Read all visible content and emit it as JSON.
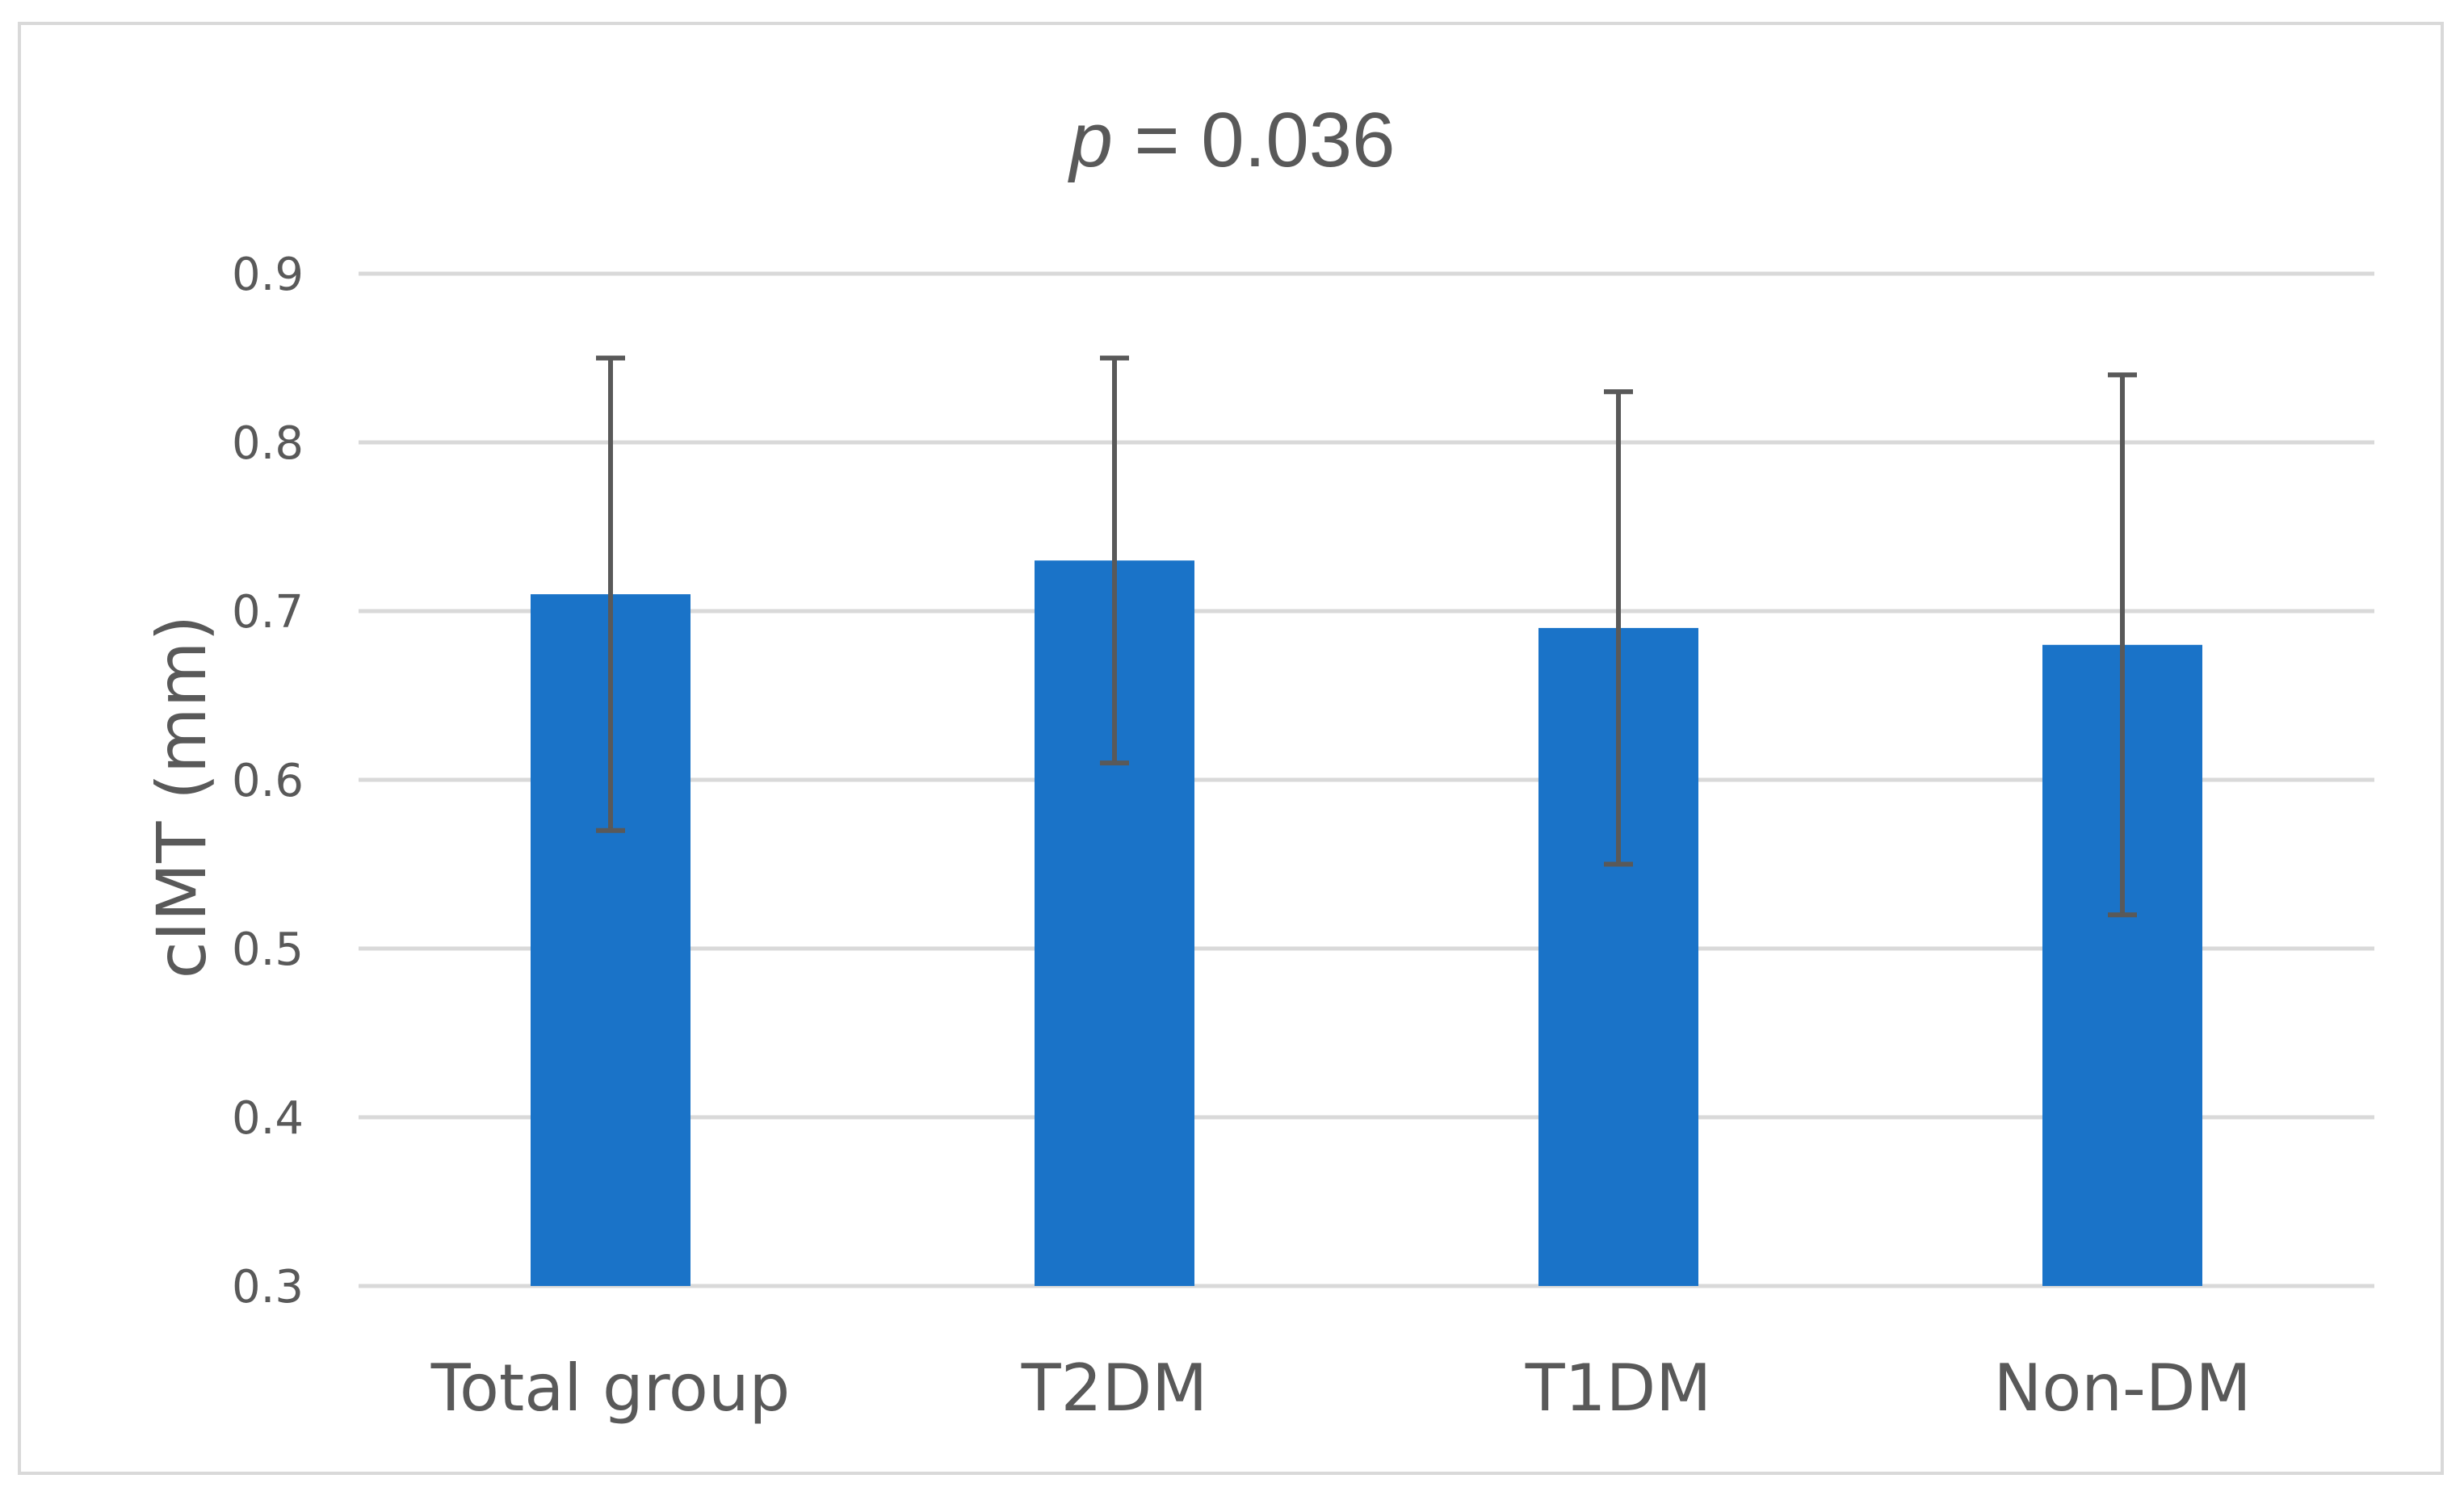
{
  "chart_data": {
    "type": "bar",
    "title_p": "p",
    "title_rest": " = 0.036",
    "title": "p = 0.036",
    "xlabel": "",
    "ylabel": "cIMT (mm)",
    "categories": [
      "Total group",
      "T2DM",
      "T1DM",
      "Non-DM"
    ],
    "values": [
      0.71,
      0.73,
      0.69,
      0.68
    ],
    "error_low": [
      0.57,
      0.61,
      0.55,
      0.52
    ],
    "error_high": [
      0.85,
      0.85,
      0.83,
      0.84
    ],
    "ylim": [
      0.3,
      0.9
    ],
    "yticks": [
      "0.3",
      "0.4",
      "0.5",
      "0.6",
      "0.7",
      "0.8",
      "0.9"
    ],
    "grid": true,
    "legend": "none",
    "bar_color": "#1a73c8",
    "error_bar_color": "#595959",
    "gridline_color": "#d9d9d9"
  }
}
